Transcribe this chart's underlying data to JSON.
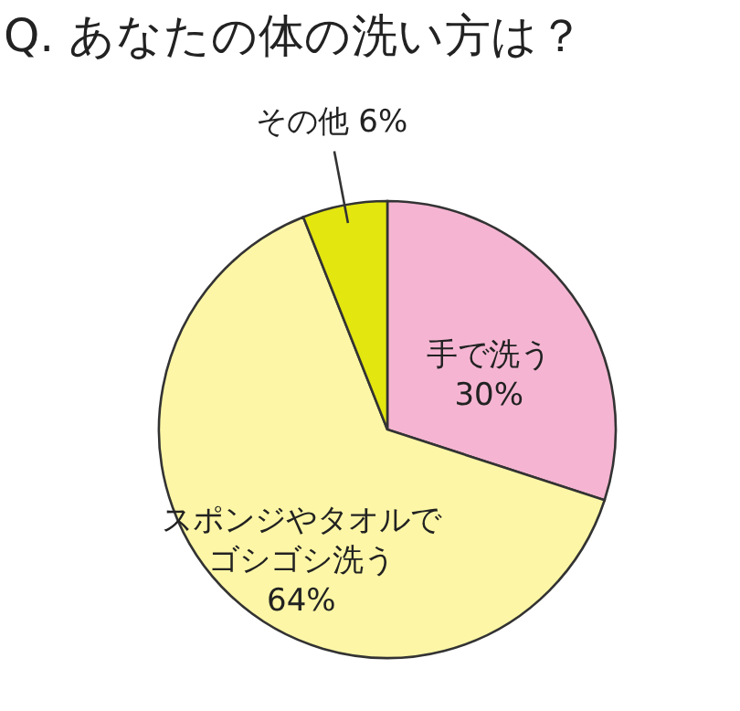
{
  "chart_data": {
    "type": "pie",
    "title": "Q. あなたの体の洗い方は？",
    "categories": [
      "手で洗う",
      "スポンジやタオルでゴシゴシ洗う",
      "その他"
    ],
    "values": [
      30,
      64,
      6
    ],
    "colors": [
      "#f5b5d2",
      "#fdf6a6",
      "#e3e60f"
    ],
    "value_labels": [
      "30%",
      "64%",
      "6%"
    ],
    "legend": false
  }
}
